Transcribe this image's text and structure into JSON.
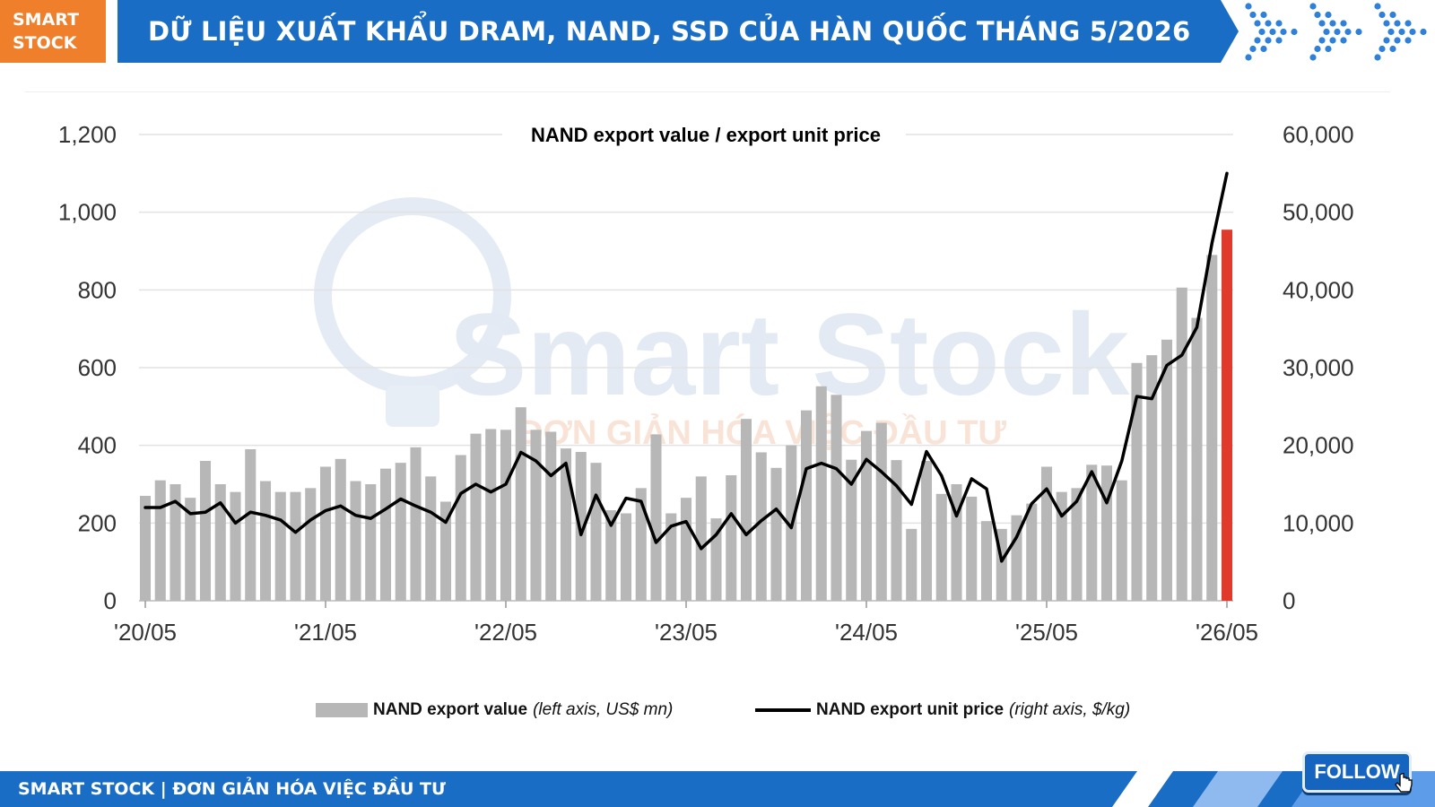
{
  "header": {
    "brand_line1": "SMART",
    "brand_line2": "STOCK",
    "title": "DỮ LIỆU XUẤT KHẨU DRAM, NAND, SSD CỦA HÀN QUỐC THÁNG 5/2026"
  },
  "watermark": {
    "brand": "Smart Stock",
    "slogan": "ĐƠN GIẢN HÓA VIỆC ĐẦU TƯ"
  },
  "chart_data": {
    "type": "bar",
    "title": "NAND export value / export unit price",
    "x_tick_labels": [
      "'20/05",
      "'21/05",
      "'22/05",
      "'23/05",
      "'24/05",
      "'25/05",
      "'26/05"
    ],
    "left_axis": {
      "ylim": [
        0,
        1200
      ],
      "ticks": [
        "0",
        "200",
        "400",
        "600",
        "800",
        "1,000",
        "1,200"
      ]
    },
    "right_axis": {
      "ylim": [
        0,
        60000
      ],
      "ticks": [
        "0",
        "10,000",
        "20,000",
        "30,000",
        "40,000",
        "50,000",
        "60,000"
      ]
    },
    "grid": true,
    "legend_position": "bottom",
    "series": [
      {
        "name": "NAND export value",
        "unit_note": "(left axis, US$ mn)",
        "kind": "bar",
        "color": "#b7b7b7",
        "highlight_last_color": "#e03a2c",
        "values": [
          270,
          310,
          300,
          265,
          360,
          300,
          280,
          390,
          308,
          280,
          280,
          290,
          345,
          365,
          308,
          300,
          340,
          355,
          395,
          320,
          255,
          375,
          430,
          442,
          440,
          498,
          440,
          435,
          392,
          383,
          355,
          233,
          225,
          290,
          428,
          225,
          265,
          320,
          212,
          323,
          468,
          382,
          342,
          400,
          490,
          552,
          530,
          363,
          437,
          458,
          362,
          185,
          360,
          275,
          300,
          268,
          205,
          185,
          220,
          250,
          345,
          280,
          290,
          350,
          348,
          310,
          612,
          632,
          672,
          806,
          728,
          890,
          955
        ]
      },
      {
        "name": "NAND export unit price",
        "unit_note": "(right axis, $/kg)",
        "kind": "line",
        "color": "#000000",
        "values": [
          12000,
          12000,
          12800,
          11200,
          11400,
          12600,
          10000,
          11400,
          11000,
          10400,
          8800,
          10400,
          11600,
          12200,
          11000,
          10600,
          11800,
          13100,
          12200,
          11400,
          10100,
          13800,
          15000,
          14000,
          15000,
          19100,
          18000,
          16100,
          17700,
          8500,
          13600,
          9700,
          13200,
          12800,
          7500,
          9600,
          10200,
          6700,
          8500,
          11200,
          8500,
          10300,
          11800,
          9400,
          17000,
          17700,
          17000,
          15000,
          18200,
          16600,
          14800,
          12400,
          19200,
          16100,
          10900,
          15700,
          14400,
          5100,
          8200,
          12500,
          14400,
          10900,
          12800,
          16600,
          12600,
          18000,
          26300,
          26000,
          30300,
          31600,
          35200,
          46000,
          55000
        ]
      }
    ]
  },
  "footer": {
    "text": "SMART STOCK | ĐƠN GIẢN HÓA VIỆC ĐẦU TƯ",
    "follow_label": "FOLLOW"
  },
  "colors": {
    "brand_orange": "#f07f2c",
    "brand_blue": "#1a6dc4",
    "bar_gray": "#b7b7b7",
    "bar_highlight": "#e03a2c"
  }
}
